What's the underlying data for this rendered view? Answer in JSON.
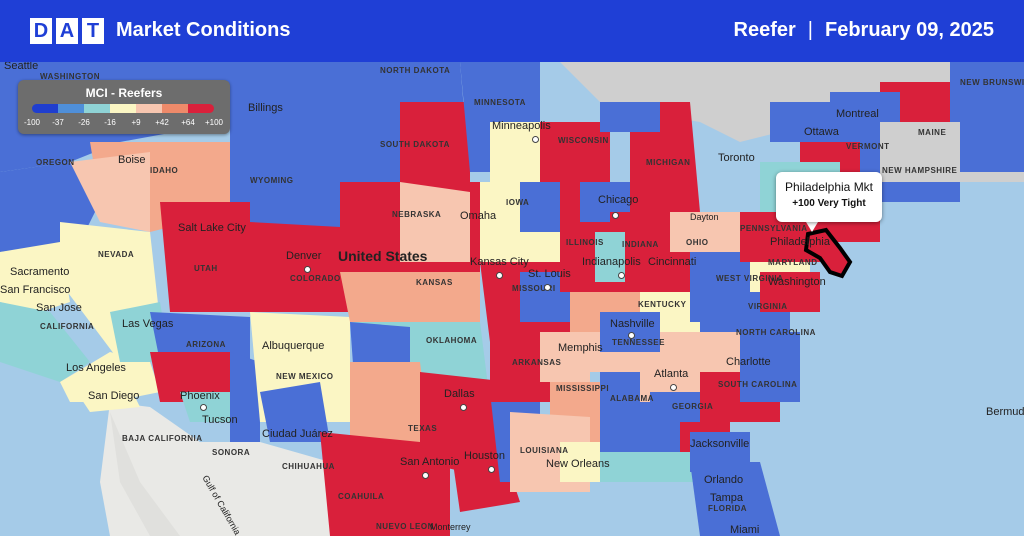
{
  "header": {
    "logo_letters": [
      "D",
      "A",
      "T"
    ],
    "title": "Market Conditions",
    "equipment": "Reefer",
    "separator": "|",
    "date": "February 09, 2025"
  },
  "legend": {
    "title": "MCI - Reefers",
    "colors": [
      "#1f3ecf",
      "#4f8fd9",
      "#8fd3d6",
      "#fbf6c4",
      "#f7c6b0",
      "#ee8a6a",
      "#d9203b"
    ],
    "ticks": [
      "-100",
      "-37",
      "-26",
      "-16",
      "+9",
      "+42",
      "+64",
      "+100"
    ]
  },
  "tooltip": {
    "market": "Philadelphia Mkt",
    "value": "+100 Very Tight"
  },
  "map_labels": {
    "country": "United States",
    "states": [
      "NORTH DAKOTA",
      "MINNESOTA",
      "SOUTH DAKOTA",
      "WISCONSIN",
      "MICHIGAN",
      "IDAHO",
      "WYOMING",
      "OREGON",
      "NEBRASKA",
      "IOWA",
      "ILLINOIS",
      "INDIANA",
      "OHIO",
      "PENNSYLVANIA",
      "NEVADA",
      "UTAH",
      "COLORADO",
      "KANSAS",
      "MISSOURI",
      "KENTUCKY",
      "WEST VIRGINIA",
      "VIRGINIA",
      "MARYLAND",
      "CALIFORNIA",
      "ARIZONA",
      "NEW MEXICO",
      "OKLAHOMA",
      "ARKANSAS",
      "TENNESSEE",
      "NORTH CAROLINA",
      "SOUTH CAROLINA",
      "MISSISSIPPI",
      "ALABAMA",
      "GEORGIA",
      "TEXAS",
      "LOUISIANA",
      "FLORIDA",
      "MAINE",
      "VERMONT",
      "NEW HAMPSHIRE",
      "NEW BRUNSWICK",
      "WASHINGTON",
      "BAJA CALIFORNIA",
      "SONORA",
      "CHIHUAHUA",
      "COAHUILA",
      "NUEVO LEON"
    ],
    "cities": [
      "Seattle",
      "Billings",
      "Boise",
      "Minneapolis",
      "Ottawa",
      "Montreal",
      "Toronto",
      "Chicago",
      "Salt Lake City",
      "Omaha",
      "Denver",
      "Kansas City",
      "St. Louis",
      "Indianapolis",
      "Cincinnati",
      "Philadelphia",
      "Washington",
      "Sacramento",
      "San Francisco",
      "San Jose",
      "Las Vegas",
      "Los Angeles",
      "San Diego",
      "Phoenix",
      "Tucson",
      "Albuquerque",
      "Nashville",
      "Memphis",
      "Charlotte",
      "Atlanta",
      "Dallas",
      "Ciudad Juárez",
      "San Antonio",
      "Houston",
      "New Orleans",
      "Jacksonville",
      "Orlando",
      "Tampa",
      "Miami",
      "Bermuda",
      "Gulf of California",
      "Monterrey",
      "Dayton"
    ]
  }
}
